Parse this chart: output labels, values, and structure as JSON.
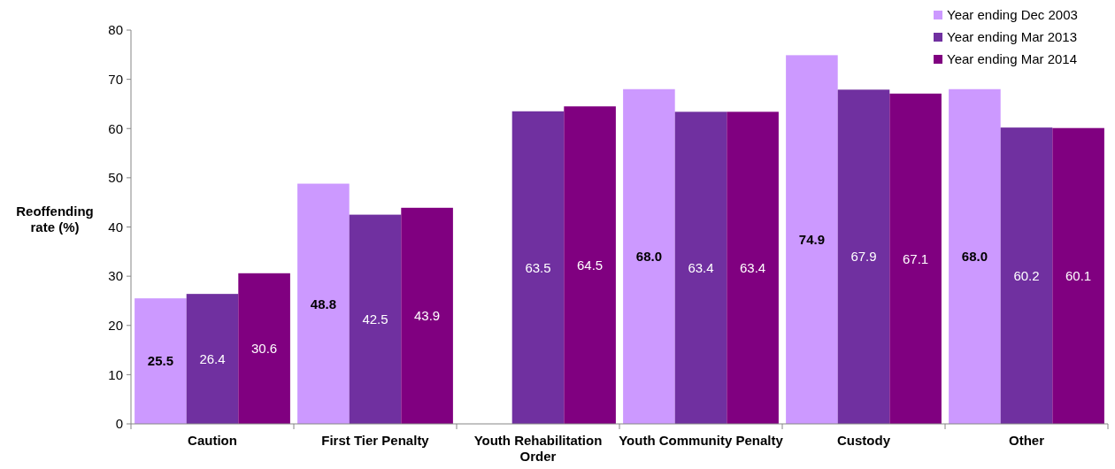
{
  "chart_data": {
    "type": "bar",
    "ylabel": "Reoffending rate (%)",
    "categories": [
      "Caution",
      "First Tier Penalty",
      "Youth Rehabilitation Order",
      "Youth Community Penalty",
      "Custody",
      "Other"
    ],
    "series": [
      {
        "name": "Year ending Dec 2003",
        "color": "#cc99ff",
        "values": [
          25.5,
          48.8,
          null,
          68.0,
          74.9,
          68.0
        ],
        "value_labels": [
          "25.5",
          "48.8",
          null,
          "68.0",
          "74.9",
          "68.0"
        ]
      },
      {
        "name": "Year ending Mar 2013",
        "color": "#7030a0",
        "values": [
          26.4,
          42.5,
          63.5,
          63.4,
          67.9,
          60.2
        ],
        "value_labels": [
          "26.4",
          "42.5",
          "63.5",
          "63.4",
          "67.9",
          "60.2"
        ]
      },
      {
        "name": "Year ending Mar 2014",
        "color": "#800080",
        "values": [
          30.6,
          43.9,
          64.5,
          63.4,
          67.1,
          60.1
        ],
        "value_labels": [
          "30.6",
          "43.9",
          "64.5",
          "63.4",
          "67.1",
          "60.1"
        ]
      }
    ],
    "ylim": [
      0,
      80
    ],
    "yticks": [
      0,
      10,
      20,
      30,
      40,
      50,
      60,
      70,
      80
    ],
    "grid": false,
    "legend": "top right"
  }
}
